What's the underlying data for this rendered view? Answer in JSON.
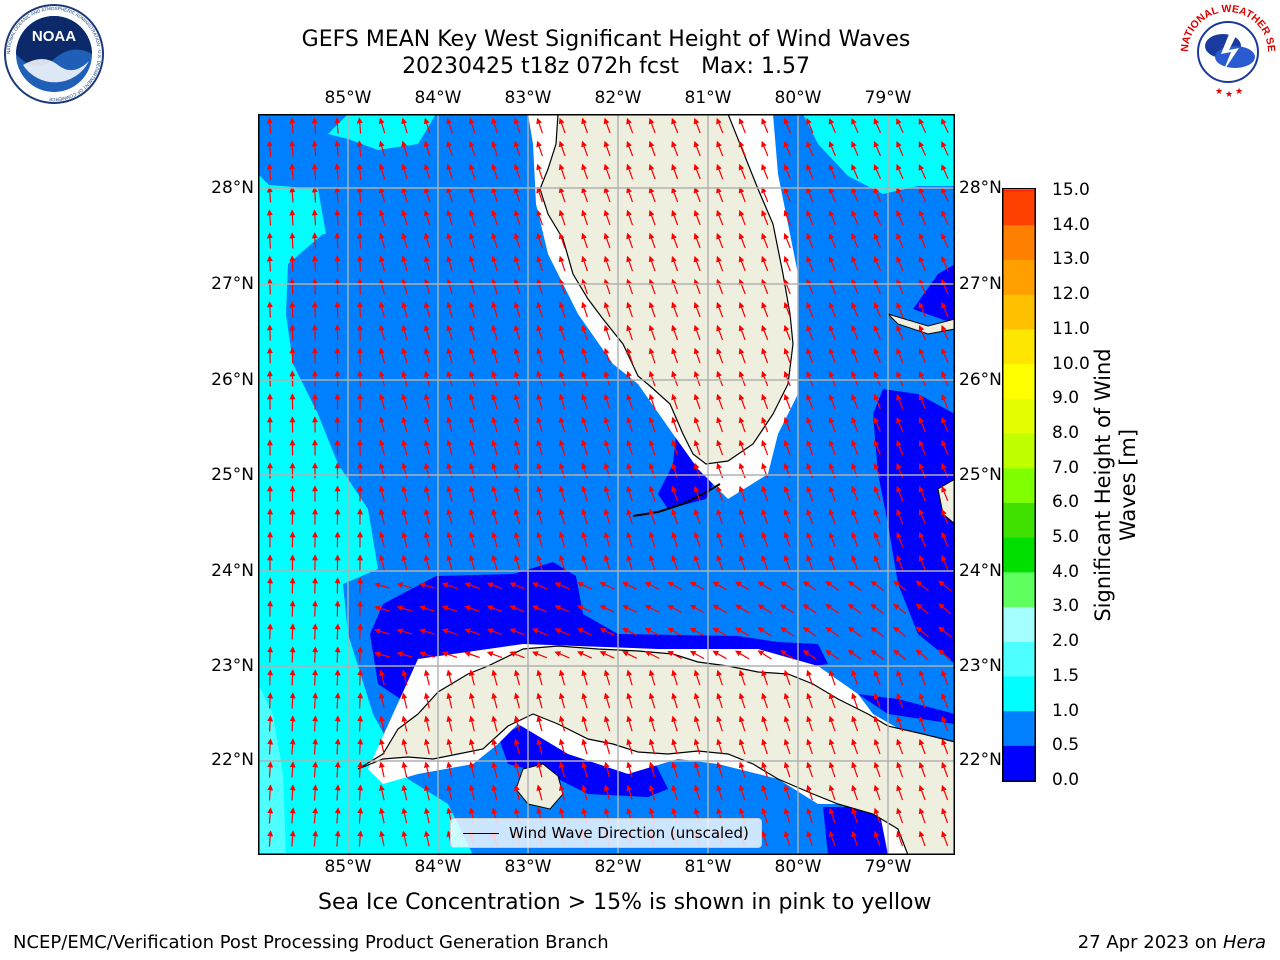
{
  "title": {
    "line1": "GEFS MEAN Key West Significant Height of Wind Waves",
    "line2_run": "20230425 t18z 072h fcst",
    "line2_max": "Max: 1.57"
  },
  "map": {
    "lon_ticks": [
      "85°W",
      "84°W",
      "83°W",
      "82°W",
      "81°W",
      "80°W",
      "79°W"
    ],
    "lat_ticks": [
      "28°N",
      "27°N",
      "26°N",
      "25°N",
      "24°N",
      "23°N",
      "22°N"
    ],
    "lon_range": [
      -86.0,
      -78.3
    ],
    "lat_range": [
      21.05,
      28.75
    ],
    "field_colors": {
      "0.0-0.5": "#0000ff",
      "0.5-1.0": "#0080ff",
      "1.0-1.5": "#00ffff",
      "1.5-2.0": "#4dffff",
      "land": "#efefdf"
    }
  },
  "legend": {
    "label": "Wind Wave Direction (unscaled)",
    "arrow_color": "#ff0000"
  },
  "colorbar": {
    "label_line1": "Significant Height of Wind",
    "label_line2": "Waves [m]",
    "ticks": [
      "15.0",
      "14.0",
      "13.0",
      "12.0",
      "11.0",
      "10.0",
      "9.0",
      "8.0",
      "7.0",
      "6.0",
      "5.0",
      "4.0",
      "3.0",
      "2.0",
      "1.5",
      "1.0",
      "0.5",
      "0.0"
    ],
    "colors": [
      "#0000ff",
      "#0080ff",
      "#00ffff",
      "#4dffff",
      "#a6ffff",
      "#60ff60",
      "#00e000",
      "#40e000",
      "#80ff00",
      "#c0ff00",
      "#e6ff00",
      "#ffff00",
      "#ffe600",
      "#ffc000",
      "#ffa000",
      "#ff8000",
      "#ff4000",
      "#ff0000"
    ]
  },
  "note": "Sea Ice Concentration > 15% is shown in pink to yellow",
  "footer": {
    "left": "NCEP/EMC/Verification Post Processing Product Generation Branch",
    "date": "27 Apr 2023 on",
    "machine": "Hera"
  },
  "logos": {
    "noaa": "NOAA",
    "noaa_ring": "NATIONAL OCEANIC AND ATMOSPHERIC ADMINISTRATION · U.S. DEPARTMENT OF COMMERCE",
    "nws_ring": "NATIONAL WEATHER SERVICE"
  }
}
